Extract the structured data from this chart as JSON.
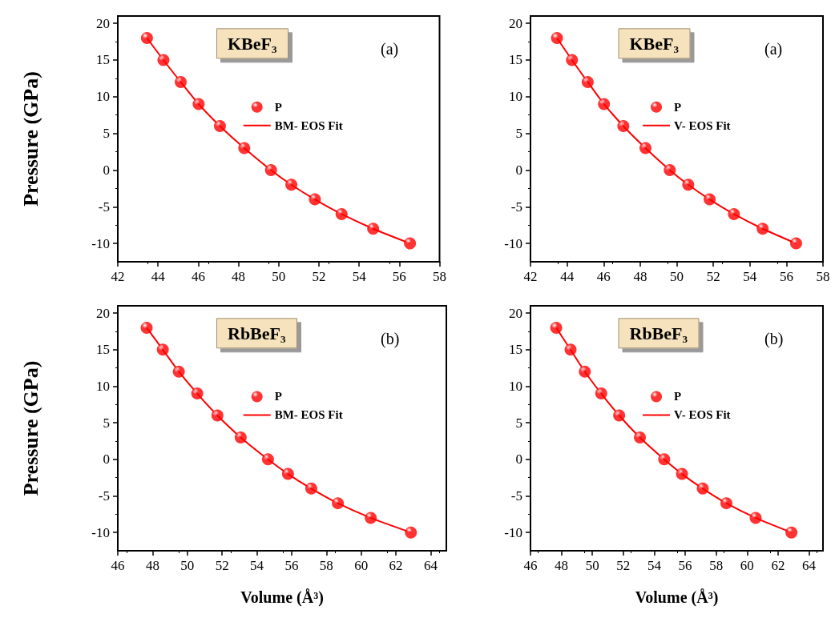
{
  "chart_data": [
    {
      "type": "scatter",
      "title": "KBeF₃",
      "annotations": [
        "(a)"
      ],
      "ylabel": "Pressure (GPa)",
      "xlim": [
        42,
        58
      ],
      "xticks": [
        42,
        44,
        46,
        48,
        50,
        52,
        54,
        56,
        58
      ],
      "ylim": [
        -12.5,
        21
      ],
      "yticks": [
        -10,
        -5,
        0,
        5,
        10,
        15,
        20
      ],
      "legend": "center",
      "grid": false,
      "series": [
        {
          "name": "P",
          "marker": "circle",
          "color": "#ff0000",
          "x": [
            43.45,
            44.27,
            45.13,
            46.02,
            47.08,
            48.29,
            49.62,
            50.63,
            51.8,
            53.13,
            54.7,
            56.53
          ],
          "values": [
            18,
            15,
            12,
            9,
            6,
            3,
            0,
            -2,
            -4,
            -6,
            -8,
            -10
          ]
        },
        {
          "name": "BM- EOS Fit",
          "type": "line",
          "marker": "none",
          "color": "#ff0000",
          "line_style": "solid",
          "x": [
            43.45,
            44.27,
            45.13,
            46.02,
            47.08,
            48.29,
            49.62,
            50.63,
            51.8,
            53.13,
            54.7,
            56.53
          ],
          "values": [
            18,
            15,
            12,
            9,
            6,
            3,
            0,
            -2,
            -4,
            -6,
            -8,
            -10
          ]
        }
      ]
    },
    {
      "type": "scatter",
      "title": "KBeF₃",
      "annotations": [
        "(a)"
      ],
      "xlim": [
        42,
        58
      ],
      "xticks": [
        42,
        44,
        46,
        48,
        50,
        52,
        54,
        56,
        58
      ],
      "ylim": [
        -12.5,
        21
      ],
      "yticks": [
        -10,
        -5,
        0,
        5,
        10,
        15,
        20
      ],
      "legend": "center",
      "grid": false,
      "series": [
        {
          "name": "P",
          "marker": "circle",
          "color": "#ff0000",
          "x": [
            43.45,
            44.27,
            45.13,
            46.02,
            47.08,
            48.29,
            49.62,
            50.63,
            51.8,
            53.13,
            54.7,
            56.53
          ],
          "values": [
            18,
            15,
            12,
            9,
            6,
            3,
            0,
            -2,
            -4,
            -6,
            -8,
            -10
          ]
        },
        {
          "name": "V- EOS Fit",
          "type": "line",
          "marker": "none",
          "color": "#ff0000",
          "line_style": "solid",
          "x": [
            43.45,
            44.27,
            45.13,
            46.02,
            47.08,
            48.29,
            49.62,
            50.63,
            51.8,
            53.13,
            54.7,
            56.53
          ],
          "values": [
            18,
            15,
            12,
            9,
            6,
            3,
            0,
            -2,
            -4,
            -6,
            -8,
            -10
          ]
        }
      ]
    },
    {
      "type": "scatter",
      "title": "RbBeF₃",
      "annotations": [
        "(b)"
      ],
      "ylabel": "Pressure (GPa)",
      "xlabel": "Volume (Å³)",
      "xlim": [
        46,
        64.9
      ],
      "xticks": [
        46,
        48,
        50,
        52,
        54,
        56,
        58,
        60,
        62,
        64
      ],
      "ylim": [
        -12.5,
        21
      ],
      "yticks": [
        -10,
        -5,
        0,
        5,
        10,
        15,
        20
      ],
      "legend": "center",
      "grid": false,
      "series": [
        {
          "name": "P",
          "marker": "circle",
          "color": "#ff0000",
          "x": [
            47.66,
            48.59,
            49.51,
            50.57,
            51.73,
            53.07,
            54.64,
            55.79,
            57.13,
            58.66,
            60.55,
            62.86
          ],
          "values": [
            18,
            15,
            12,
            9,
            6,
            3,
            0,
            -2,
            -4,
            -6,
            -8,
            -10
          ]
        },
        {
          "name": "BM- EOS Fit",
          "type": "line",
          "marker": "none",
          "color": "#ff0000",
          "line_style": "solid",
          "x": [
            47.66,
            48.59,
            49.51,
            50.57,
            51.73,
            53.07,
            54.64,
            55.79,
            57.13,
            58.66,
            60.55,
            62.86
          ],
          "values": [
            18,
            15,
            12,
            9,
            6,
            3,
            0,
            -2,
            -4,
            -6,
            -8,
            -10
          ]
        }
      ]
    },
    {
      "type": "scatter",
      "title": "RbBeF₃",
      "annotations": [
        "(b)"
      ],
      "xlabel": "Volume (Å³)",
      "xlim": [
        46,
        64.9
      ],
      "xticks": [
        46,
        48,
        50,
        52,
        54,
        56,
        58,
        60,
        62,
        64
      ],
      "ylim": [
        -12.5,
        21
      ],
      "yticks": [
        -10,
        -5,
        0,
        5,
        10,
        15,
        20
      ],
      "legend": "center",
      "grid": false,
      "series": [
        {
          "name": "P",
          "marker": "circle",
          "color": "#ff0000",
          "x": [
            47.66,
            48.59,
            49.51,
            50.57,
            51.73,
            53.07,
            54.64,
            55.79,
            57.13,
            58.66,
            60.55,
            62.86
          ],
          "values": [
            18,
            15,
            12,
            9,
            6,
            3,
            0,
            -2,
            -4,
            -6,
            -8,
            -10
          ]
        },
        {
          "name": "V- EOS Fit",
          "type": "line",
          "marker": "none",
          "color": "#ff0000",
          "line_style": "solid",
          "x": [
            47.66,
            48.59,
            49.51,
            50.57,
            51.73,
            53.07,
            54.64,
            55.79,
            57.13,
            58.66,
            60.55,
            62.86
          ],
          "values": [
            18,
            15,
            12,
            9,
            6,
            3,
            0,
            -2,
            -4,
            -6,
            -8,
            -10
          ]
        }
      ]
    }
  ]
}
